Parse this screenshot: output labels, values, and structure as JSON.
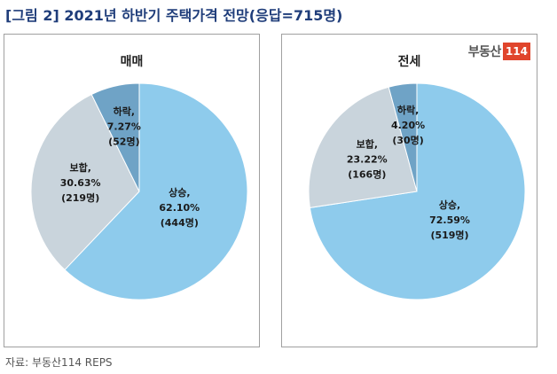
{
  "title": "[그림 2] 2021년 하반기 주택가격 전망(응답=715명)",
  "logo": {
    "text": "부동산",
    "num": "114"
  },
  "source": "자료: 부동산114 REPS",
  "colors": {
    "up": "#8ecbec",
    "same": "#c9d4dc",
    "down": "#6fa3c6"
  },
  "chart_data": [
    {
      "type": "pie",
      "title": "매매",
      "slices": [
        {
          "name": "상승,",
          "pct": "62.10%",
          "count": "(444명)",
          "value": 444,
          "color": "#8ecbec"
        },
        {
          "name": "보합,",
          "pct": "30.63%",
          "count": "(219명)",
          "value": 219,
          "color": "#c9d4dc"
        },
        {
          "name": "하락,",
          "pct": "7.27%",
          "count": "(52명)",
          "value": 52,
          "color": "#6fa3c6"
        }
      ]
    },
    {
      "type": "pie",
      "title": "전세",
      "slices": [
        {
          "name": "상승,",
          "pct": "72.59%",
          "count": "(519명)",
          "value": 519,
          "color": "#8ecbec"
        },
        {
          "name": "보합,",
          "pct": "23.22%",
          "count": "(166명)",
          "value": 166,
          "color": "#c9d4dc"
        },
        {
          "name": "하락,",
          "pct": "4.20%",
          "count": "(30명)",
          "value": 30,
          "color": "#6fa3c6"
        }
      ]
    }
  ]
}
